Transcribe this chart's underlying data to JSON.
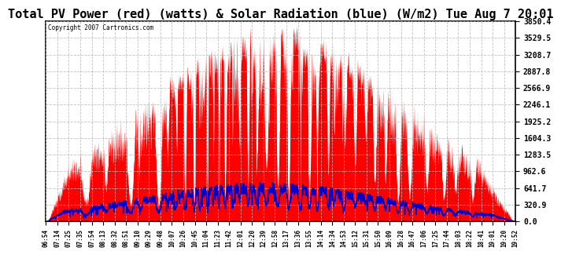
{
  "title": "Total PV Power (red) (watts) & Solar Radiation (blue) (W/m2) Tue Aug 7 20:01",
  "copyright": "Copyright 2007 Cartronics.com",
  "y_ticks": [
    0.0,
    320.9,
    641.7,
    962.6,
    1283.5,
    1604.3,
    1925.2,
    2246.1,
    2566.9,
    2887.8,
    3208.7,
    3529.5,
    3850.4
  ],
  "y_max": 3850.4,
  "x_labels": [
    "06:54",
    "07:14",
    "07:25",
    "07:35",
    "07:54",
    "08:13",
    "08:32",
    "08:51",
    "09:10",
    "09:29",
    "09:48",
    "10:07",
    "10:26",
    "10:45",
    "11:04",
    "11:23",
    "11:42",
    "12:01",
    "12:20",
    "12:39",
    "12:58",
    "13:17",
    "13:36",
    "13:55",
    "14:14",
    "14:34",
    "14:53",
    "15:12",
    "15:31",
    "15:50",
    "16:09",
    "16:28",
    "16:47",
    "17:06",
    "17:25",
    "17:44",
    "18:03",
    "18:22",
    "18:41",
    "19:01",
    "19:20",
    "19:52"
  ],
  "pv_color": "#FF0000",
  "solar_color": "#0000CC",
  "bg_color": "#FFFFFF",
  "grid_color": "#BBBBBB",
  "title_font_size": 11
}
